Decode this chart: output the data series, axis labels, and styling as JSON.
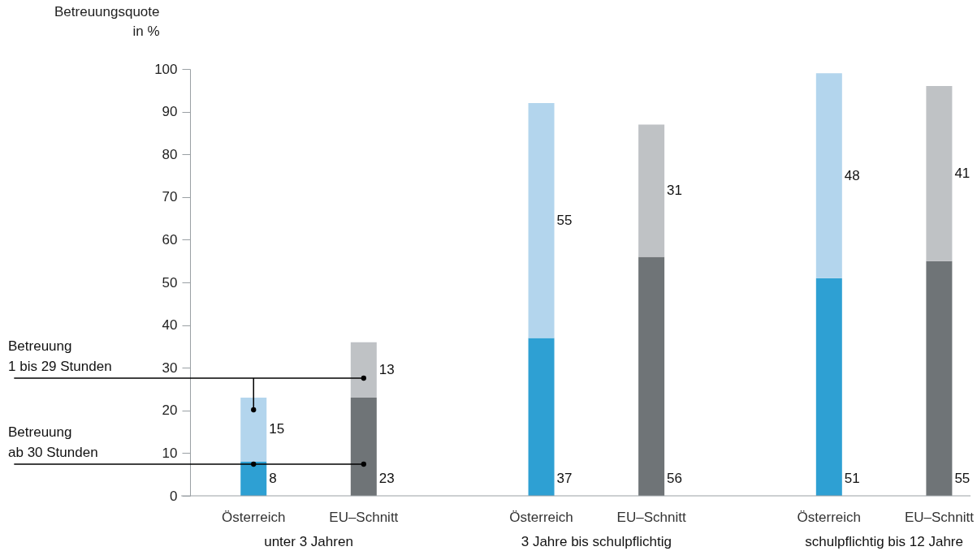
{
  "chart_data": {
    "type": "bar",
    "stacked": true,
    "ylabel": "Betreuungsquote in %",
    "categories": [
      "Österreich",
      "EU–Schnitt",
      "Österreich",
      "EU–Schnitt",
      "Österreich",
      "EU–Schnitt"
    ],
    "series": [
      {
        "name": "Betreuung ab 30 Stunden",
        "colors": [
          "#2ea0d3",
          "#6f7477",
          "#2ea0d3",
          "#6f7477",
          "#2ea0d3",
          "#6f7477"
        ],
        "values": [
          8,
          23,
          37,
          56,
          51,
          55
        ]
      },
      {
        "name": "Betreuung 1 bis 29 Stunden",
        "colors": [
          "#b3d5ed",
          "#bfc2c5",
          "#b3d5ed",
          "#bfc2c5",
          "#b3d5ed",
          "#bfc2c5"
        ],
        "values": [
          15,
          13,
          55,
          31,
          48,
          41
        ]
      }
    ],
    "ylim": [
      0,
      100
    ],
    "yticks": [
      0,
      10,
      20,
      30,
      40,
      50,
      60,
      70,
      80,
      90,
      100
    ],
    "data_labels": true,
    "legend": "left",
    "grid": false,
    "annotations": [
      "unter 3 Jahren",
      "3 Jahre bis schulpflichtig",
      "schulpflichtig bis 12 Jahre"
    ]
  }
}
